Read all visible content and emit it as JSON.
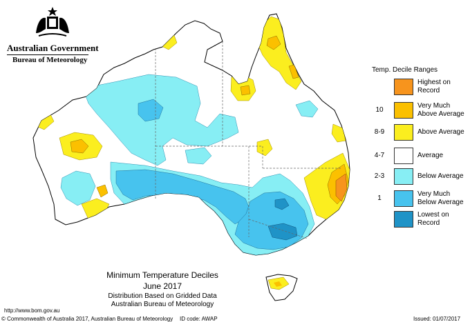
{
  "header": {
    "government": "Australian Government",
    "bureau": "Bureau of Meteorology",
    "crest_icon": "commonwealth-coat-of-arms-icon"
  },
  "map": {
    "title": "Minimum Temperature Deciles",
    "period": "June 2017",
    "subtitle1": "Distribution Based on Gridded Data",
    "subtitle2": "Australian Bureau of Meteorology"
  },
  "legend": {
    "title": "Temp. Decile Ranges",
    "items": [
      {
        "code": "",
        "label": "Highest on\nRecord",
        "color": "#f7941d"
      },
      {
        "code": "10",
        "label": "Very Much\nAbove Average",
        "color": "#fbc000"
      },
      {
        "code": "8-9",
        "label": "Above Average",
        "color": "#fbee1f"
      },
      {
        "code": "4-7",
        "label": "Average",
        "color": "#ffffff"
      },
      {
        "code": "2-3",
        "label": "Below Average",
        "color": "#87eef4"
      },
      {
        "code": "1",
        "label": "Very Much\nBelow Average",
        "color": "#47c3ee"
      },
      {
        "code": "",
        "label": "Lowest on\nRecord",
        "color": "#1f93c7"
      }
    ]
  },
  "footer": {
    "url": "http://www.bom.gov.au",
    "copyright": "© Commonwealth of Australia 2017, Australian Bureau of Meteorology",
    "id_code": "ID code: AWAP",
    "issued": "Issued: 01/07/2017"
  }
}
